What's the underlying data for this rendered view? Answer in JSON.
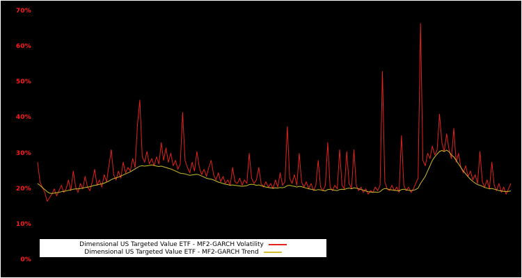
{
  "chart": {
    "background": "#000000",
    "border_color": "#ffffff",
    "tick_color": "#ff1a1a",
    "yticks": [
      "0%",
      "10%",
      "20%",
      "30%",
      "40%",
      "50%",
      "60%",
      "70%"
    ],
    "legend": {
      "items": [
        {
          "label": "Dimensional US Targeted Value ETF - MF2-GARCH Volatility",
          "color": "#e3231c"
        },
        {
          "label": "Dimensional US Targeted Value ETF - MF2-GARCH Trend",
          "color": "#cdbf2e"
        }
      ]
    }
  },
  "chart_data": {
    "type": "line",
    "title": "",
    "xlabel": "",
    "ylabel": "",
    "ylim": [
      0,
      70
    ],
    "yticks_percent": [
      0,
      10,
      20,
      30,
      40,
      50,
      60,
      70
    ],
    "x_axis": "time (unlabeled)",
    "grid": false,
    "legend_position": "bottom-center",
    "plot_background": "#000000",
    "series": [
      {
        "name": "Dimensional US Targeted Value ETF - MF2-GARCH Volatility",
        "color": "#e3231c",
        "unit": "%",
        "values": [
          27.5,
          22,
          20.5,
          19,
          16.5,
          17.5,
          18.5,
          20,
          18,
          19.5,
          21,
          19,
          20,
          22.5,
          19.5,
          25,
          20.5,
          19,
          21.5,
          20,
          23.5,
          20.5,
          19.5,
          22,
          25.5,
          21,
          22.5,
          20.5,
          24,
          22,
          26.5,
          31,
          24,
          22.5,
          25,
          23,
          27.5,
          24.5,
          26,
          25,
          28.5,
          26,
          38,
          45,
          29,
          27.5,
          30.5,
          27,
          28.5,
          26.5,
          29,
          27,
          33,
          28,
          31.5,
          27.5,
          30,
          26.5,
          28,
          25.5,
          27,
          41.5,
          28,
          26,
          24.5,
          27.5,
          25,
          30.5,
          26,
          24,
          25.5,
          23.5,
          26,
          28,
          24,
          22.5,
          24.5,
          22,
          23.5,
          21.5,
          22.5,
          21,
          26,
          22,
          21.5,
          23,
          21,
          22.5,
          21.5,
          30,
          23,
          21.5,
          22.5,
          26,
          21.5,
          20.5,
          22,
          20.5,
          21.5,
          20,
          22.5,
          20.5,
          24.5,
          21,
          22,
          37.5,
          23,
          21.5,
          24,
          21,
          30,
          22,
          20.5,
          22,
          20,
          21.5,
          19.5,
          21,
          28,
          20.5,
          19.5,
          21,
          33,
          20.5,
          19.5,
          21,
          20,
          31,
          21,
          20,
          30.5,
          21.5,
          20,
          31,
          21,
          19.5,
          20.5,
          19,
          20,
          18.5,
          19.5,
          19,
          20.5,
          19.5,
          21,
          53,
          22,
          20,
          19.5,
          21,
          19.5,
          20.5,
          19,
          35,
          21,
          19.5,
          20.5,
          19,
          20,
          21.5,
          23,
          66.5,
          28,
          26.5,
          30,
          28.5,
          32,
          29.5,
          31,
          41,
          33,
          30.5,
          35.5,
          31,
          28.5,
          37,
          27.5,
          30,
          26,
          24.5,
          26.5,
          23.5,
          25,
          22.5,
          24,
          21.5,
          30.5,
          22,
          20.5,
          22.5,
          20,
          27.5,
          21,
          19.5,
          21.5,
          19,
          20.5,
          18.5,
          20,
          21.5
        ]
      },
      {
        "name": "Dimensional US Targeted Value ETF - MF2-GARCH Trend",
        "color": "#cdbf2e",
        "unit": "%",
        "values": [
          21.5,
          21.0,
          20.4,
          19.8,
          19.2,
          18.8,
          18.7,
          18.8,
          18.9,
          19.0,
          19.2,
          19.3,
          19.4,
          19.6,
          19.7,
          19.9,
          20.0,
          20.0,
          20.1,
          20.2,
          20.4,
          20.5,
          20.6,
          20.8,
          21.0,
          21.1,
          21.3,
          21.4,
          21.6,
          21.9,
          22.2,
          22.6,
          22.9,
          23.1,
          23.3,
          23.6,
          23.9,
          24.2,
          24.5,
          24.8,
          25.2,
          25.6,
          26.0,
          26.4,
          26.5,
          26.4,
          26.5,
          26.6,
          26.7,
          26.6,
          26.4,
          26.3,
          26.4,
          26.2,
          26.0,
          25.8,
          25.6,
          25.3,
          25.0,
          24.7,
          24.4,
          24.3,
          24.2,
          24.0,
          23.8,
          23.9,
          24.0,
          24.1,
          23.9,
          23.6,
          23.3,
          23.0,
          22.8,
          22.7,
          22.5,
          22.2,
          21.9,
          21.7,
          21.5,
          21.3,
          21.2,
          21.0,
          21.1,
          21.0,
          20.9,
          20.8,
          20.7,
          20.8,
          20.9,
          21.2,
          21.3,
          21.2,
          21.0,
          21.1,
          20.9,
          20.7,
          20.5,
          20.4,
          20.3,
          20.2,
          20.3,
          20.2,
          20.4,
          20.3,
          20.5,
          20.9,
          21.0,
          20.8,
          20.7,
          20.5,
          20.7,
          20.6,
          20.4,
          20.2,
          20.0,
          19.9,
          19.7,
          19.6,
          19.8,
          19.7,
          19.5,
          19.4,
          19.8,
          19.9,
          19.7,
          19.6,
          19.5,
          19.8,
          19.9,
          19.8,
          20.1,
          20.2,
          20.0,
          20.3,
          20.2,
          20.0,
          19.8,
          19.6,
          19.4,
          19.2,
          19.1,
          19.0,
          19.1,
          19.0,
          19.2,
          19.8,
          20.1,
          20.0,
          19.8,
          19.7,
          19.6,
          19.5,
          19.4,
          19.8,
          19.9,
          19.7,
          19.6,
          19.5,
          19.6,
          19.8,
          20.2,
          21.5,
          22.5,
          23.5,
          25.0,
          26.5,
          28.0,
          29.0,
          29.8,
          30.5,
          30.8,
          30.5,
          30.9,
          30.4,
          29.5,
          29.0,
          28.0,
          27.0,
          26.0,
          25.0,
          24.2,
          23.4,
          22.7,
          22.1,
          21.6,
          21.2,
          21.0,
          20.7,
          20.4,
          20.2,
          20.0,
          20.1,
          19.9,
          19.7,
          19.5,
          19.4,
          19.3,
          19.2,
          19.3,
          19.4
        ]
      }
    ]
  }
}
